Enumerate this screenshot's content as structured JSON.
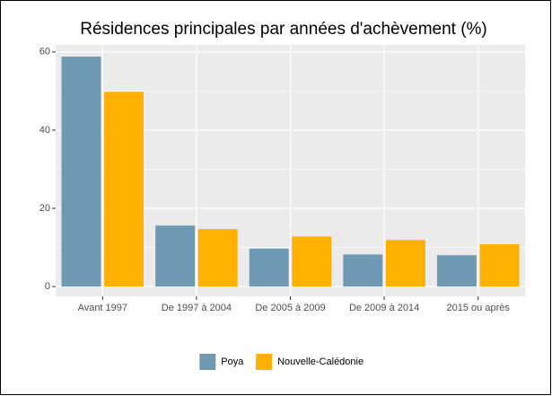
{
  "chart_data": {
    "type": "bar",
    "title": "Résidences principales par années d'achèvement (%)",
    "categories": [
      "Avant 1997",
      "De 1997 à 2004",
      "De 2005 à 2009",
      "De 2009 à 2014",
      "2015 ou après"
    ],
    "series": [
      {
        "name": "Poya",
        "color": "#6f98b2",
        "values": [
          58.8,
          15.6,
          9.7,
          8.2,
          8.0
        ]
      },
      {
        "name": "Nouvelle-Calédonie",
        "color": "#ffb000",
        "values": [
          49.8,
          14.7,
          12.8,
          11.9,
          10.8
        ]
      }
    ],
    "ylim": [
      -2.5,
      61.8
    ],
    "yticks": [
      0,
      20,
      40,
      60
    ],
    "grid": true,
    "legend": "bottom"
  }
}
